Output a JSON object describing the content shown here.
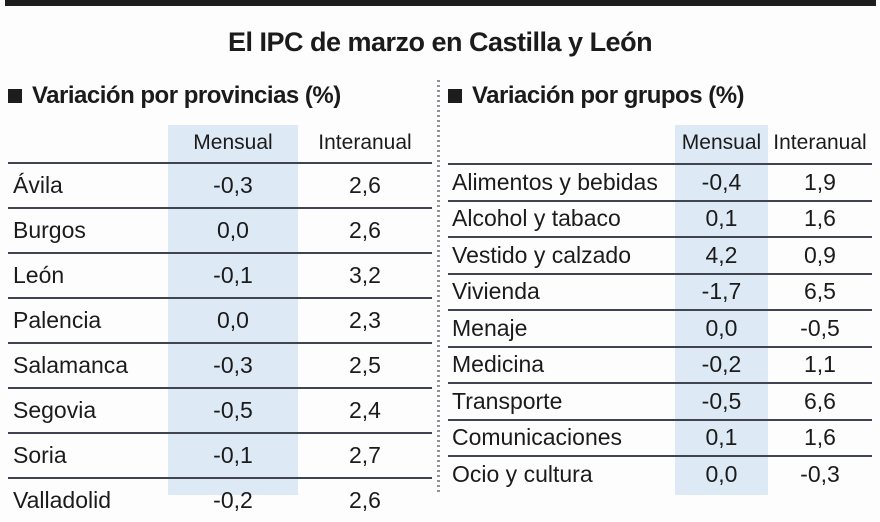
{
  "title": "El IPC de marzo en Castilla y León",
  "colors": {
    "top_rule": "#1d1d1d",
    "mensual_band": "#dde9f5",
    "row_rule": "#3f4450",
    "divider_dots": "#8e9299",
    "text": "#1b1b1b"
  },
  "chart_data": [
    {
      "type": "table",
      "title": "Variación por provincias (%)",
      "columns": [
        "",
        "Mensual",
        "Interanual"
      ],
      "rows": [
        [
          "Ávila",
          "-0,3",
          "2,6"
        ],
        [
          "Burgos",
          "0,0",
          "2,6"
        ],
        [
          "León",
          "-0,1",
          "3,2"
        ],
        [
          "Palencia",
          "0,0",
          "2,3"
        ],
        [
          "Salamanca",
          "-0,3",
          "2,5"
        ],
        [
          "Segovia",
          "-0,5",
          "2,4"
        ],
        [
          "Soria",
          "-0,1",
          "2,7"
        ],
        [
          "Valladolid",
          "-0,2",
          "2,6"
        ]
      ],
      "notes": "last row partially cut off at bottom edge; Mensual column has light blue highlight band"
    },
    {
      "type": "table",
      "title": "Variación por grupos (%)",
      "columns": [
        "",
        "Mensual",
        "Interanual"
      ],
      "rows": [
        [
          "Alimentos y bebidas",
          "-0,4",
          "1,9"
        ],
        [
          "Alcohol y tabaco",
          "0,1",
          "1,6"
        ],
        [
          "Vestido y calzado",
          "4,2",
          "0,9"
        ],
        [
          "Vivienda",
          "-1,7",
          "6,5"
        ],
        [
          "Menaje",
          "0,0",
          "-0,5"
        ],
        [
          "Medicina",
          "-0,2",
          "1,1"
        ],
        [
          "Transporte",
          "-0,5",
          "6,6"
        ],
        [
          "Comunicaciones",
          "0,1",
          "1,6"
        ],
        [
          "Ocio y cultura",
          "0,0",
          "-0,3"
        ]
      ],
      "notes": "Mensual column has light blue highlight band"
    }
  ]
}
